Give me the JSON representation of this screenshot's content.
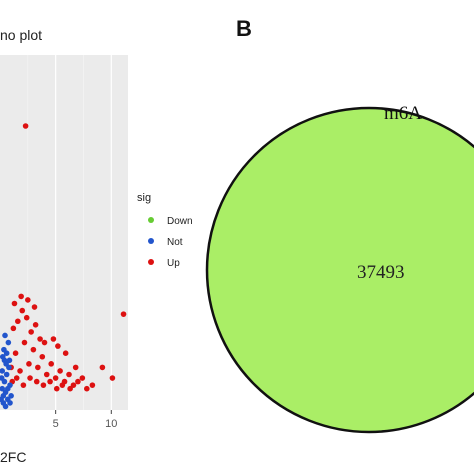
{
  "panel_b_letter": "B",
  "chart_data": [
    {
      "type": "scatter",
      "title": "no plot",
      "xlabel": "2FC",
      "ylabel": "",
      "x_ticks": [
        5,
        10
      ],
      "xlim": [
        0,
        11.5
      ],
      "ylim": [
        0,
        10
      ],
      "grid": true,
      "legend": {
        "title": "sig",
        "placement": "right",
        "entries": [
          {
            "label": "Down",
            "color": "#66cc33"
          },
          {
            "label": "Not",
            "color": "#2255cc"
          },
          {
            "label": "Up",
            "color": "#dd1111"
          }
        ]
      },
      "series": [
        {
          "name": "Up",
          "color": "#dd1111",
          "points": [
            [
              1.0,
              1.2
            ],
            [
              1.4,
              1.6
            ],
            [
              1.8,
              1.1
            ],
            [
              2.2,
              1.9
            ],
            [
              2.6,
              1.3
            ],
            [
              3.0,
              1.7
            ],
            [
              3.4,
              1.2
            ],
            [
              3.8,
              1.5
            ],
            [
              4.2,
              1.0
            ],
            [
              4.6,
              1.3
            ],
            [
              5.0,
              0.9
            ],
            [
              5.4,
              1.1
            ],
            [
              5.8,
              0.8
            ],
            [
              6.2,
              1.0
            ],
            [
              6.6,
              0.7
            ],
            [
              7.0,
              0.8
            ],
            [
              1.2,
              2.3
            ],
            [
              1.6,
              2.5
            ],
            [
              2.0,
              2.8
            ],
            [
              2.4,
              2.6
            ],
            [
              2.8,
              2.2
            ],
            [
              3.2,
              2.4
            ],
            [
              3.6,
              2.0
            ],
            [
              4.0,
              1.9
            ],
            [
              1.1,
              0.8
            ],
            [
              1.5,
              0.9
            ],
            [
              2.1,
              0.7
            ],
            [
              2.7,
              0.9
            ],
            [
              3.3,
              0.8
            ],
            [
              3.9,
              0.7
            ],
            [
              4.5,
              0.8
            ],
            [
              5.1,
              0.6
            ],
            [
              5.6,
              0.7
            ],
            [
              6.3,
              0.6
            ],
            [
              1.3,
              3.0
            ],
            [
              1.9,
              3.2
            ],
            [
              2.5,
              3.1
            ],
            [
              3.1,
              2.9
            ],
            [
              2.3,
              8.0
            ],
            [
              4.8,
              2.0
            ],
            [
              5.2,
              1.8
            ],
            [
              5.9,
              1.6
            ],
            [
              6.8,
              1.2
            ],
            [
              7.4,
              0.9
            ],
            [
              7.8,
              0.6
            ],
            [
              8.3,
              0.7
            ],
            [
              9.2,
              1.2
            ],
            [
              10.1,
              0.9
            ],
            [
              11.1,
              2.7
            ]
          ]
        },
        {
          "name": "Not",
          "color": "#2255cc",
          "points": [
            [
              0.1,
              0.3
            ],
            [
              0.2,
              0.6
            ],
            [
              0.3,
              0.4
            ],
            [
              0.4,
              0.8
            ],
            [
              0.5,
              0.5
            ],
            [
              0.6,
              1.0
            ],
            [
              0.7,
              0.6
            ],
            [
              0.8,
              1.2
            ],
            [
              0.9,
              0.7
            ],
            [
              0.2,
              1.1
            ],
            [
              0.4,
              1.4
            ],
            [
              0.6,
              1.6
            ],
            [
              0.3,
              0.2
            ],
            [
              0.5,
              0.1
            ],
            [
              0.7,
              0.3
            ],
            [
              0.9,
              0.2
            ],
            [
              1.0,
              0.4
            ],
            [
              0.15,
              0.9
            ],
            [
              0.35,
              1.7
            ],
            [
              0.55,
              1.3
            ],
            [
              0.75,
              1.9
            ],
            [
              0.45,
              2.1
            ],
            [
              0.25,
              1.5
            ],
            [
              0.85,
              1.4
            ]
          ]
        }
      ]
    },
    {
      "type": "venn",
      "sets": [
        {
          "label": "m6A",
          "value": 37493,
          "color": "#aaee66"
        }
      ]
    }
  ]
}
